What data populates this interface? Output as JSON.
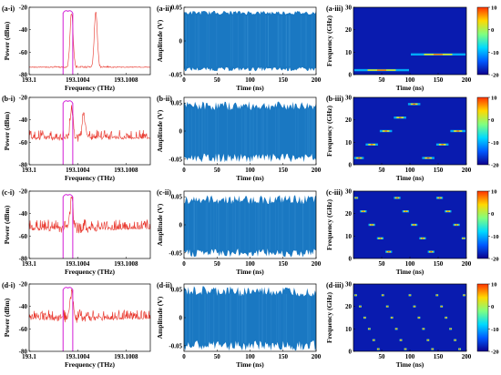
{
  "chart_data": [
    {
      "type": "line",
      "panel_label": "(a-i)",
      "xlabel": "Frequency (THz)",
      "ylabel": "Power (dBm)",
      "xlim": [
        193.1,
        193.101
      ],
      "ylim": [
        -80,
        -20
      ],
      "xticks": [
        "193.1",
        "193.1004",
        "193.1008"
      ],
      "yticks": [
        "-80",
        "-60",
        "-40",
        "-20"
      ],
      "series": [
        {
          "color": "#e8342a",
          "peaks": [
            193.10035,
            193.10055
          ],
          "peak_levels": [
            -25,
            -25
          ],
          "base": -76,
          "noise": 3
        }
      ],
      "overlay": {
        "color": "#d21fd6",
        "x_start": 193.10028,
        "x_end": 193.10036,
        "level": -22
      }
    },
    {
      "type": "area",
      "panel_label": "(a-ii)",
      "xlabel": "Time (ns)",
      "ylabel": "Amplitude (V)",
      "xlim": [
        0,
        200
      ],
      "ylim": [
        -0.05,
        0.05
      ],
      "xticks": [
        "0",
        "50",
        "100",
        "150",
        "200"
      ],
      "yticks": [
        "-0.05",
        "0",
        "0.05"
      ],
      "envelope_upper": 0.042,
      "envelope_lower": -0.042,
      "ripple": 0.003,
      "color": "#1a78c2"
    },
    {
      "type": "heatmap",
      "panel_label": "(a-iii)",
      "xlabel": "Time (ns)",
      "ylabel": "Frequency (GHz)",
      "xlim": [
        0,
        200
      ],
      "ylim": [
        0,
        30
      ],
      "xticks": [
        "50",
        "100",
        "150",
        "200"
      ],
      "yticks": [
        "0",
        "10",
        "20",
        "30"
      ],
      "colorbar": {
        "ticks": [
          "10",
          "0",
          "-10",
          "-20"
        ],
        "range": [
          -20,
          10
        ]
      },
      "segments": [
        {
          "t0": 0,
          "t1": 100,
          "f": 2
        },
        {
          "t0": 100,
          "t1": 200,
          "f": 9
        }
      ]
    },
    {
      "type": "line",
      "panel_label": "(b-i)",
      "xlabel": "Frequency (THz)",
      "ylabel": "Power (dBm)",
      "xlim": [
        193.1,
        193.101
      ],
      "ylim": [
        -80,
        -20
      ],
      "xticks": [
        "193.1",
        "193.1004",
        "193.1008"
      ],
      "yticks": [
        "-80",
        "-60",
        "-40",
        "-20"
      ],
      "series": [
        {
          "color": "#e8342a",
          "peaks": [
            193.10035,
            193.10045
          ],
          "peak_levels": [
            -28,
            -35
          ],
          "base": -58,
          "noise": 9
        }
      ],
      "overlay": {
        "color": "#d21fd6",
        "x_start": 193.10028,
        "x_end": 193.10036,
        "level": -22
      }
    },
    {
      "type": "area",
      "panel_label": "(b-ii)",
      "xlabel": "Time (ns)",
      "ylabel": "Amplitude (V)",
      "xlim": [
        0,
        200
      ],
      "ylim": [
        -0.06,
        0.06
      ],
      "xticks": [
        "0",
        "50",
        "100",
        "150",
        "200"
      ],
      "yticks": [
        "-0.05",
        "0",
        "0.05"
      ],
      "envelope_upper": 0.045,
      "envelope_lower": -0.048,
      "ripple": 0.008,
      "color": "#1a78c2"
    },
    {
      "type": "heatmap",
      "panel_label": "(b-iii)",
      "xlabel": "Time (ns)",
      "ylabel": "Frequency (GHz)",
      "xlim": [
        0,
        200
      ],
      "ylim": [
        0,
        30
      ],
      "xticks": [
        "50",
        "100",
        "150",
        "200"
      ],
      "yticks": [
        "0",
        "10",
        "20",
        "30"
      ],
      "colorbar": {
        "ticks": [
          "10",
          "0",
          "-10",
          "-20"
        ],
        "range": [
          -20,
          10
        ]
      },
      "segments": [
        {
          "t0": 0,
          "t1": 20,
          "f": 3
        },
        {
          "t0": 20,
          "t1": 45,
          "f": 9
        },
        {
          "t0": 45,
          "t1": 70,
          "f": 15
        },
        {
          "t0": 70,
          "t1": 95,
          "f": 21
        },
        {
          "t0": 95,
          "t1": 120,
          "f": 27
        },
        {
          "t0": 120,
          "t1": 145,
          "f": 3
        },
        {
          "t0": 145,
          "t1": 170,
          "f": 9
        },
        {
          "t0": 170,
          "t1": 200,
          "f": 15
        }
      ]
    },
    {
      "type": "line",
      "panel_label": "(c-i)",
      "xlabel": "Frequency (THz)",
      "ylabel": "Power (dBm)",
      "xlim": [
        193.1,
        193.101
      ],
      "ylim": [
        -80,
        -20
      ],
      "xticks": [
        "193.1",
        "193.1004",
        "193.1008"
      ],
      "yticks": [
        "-80",
        "-60",
        "-40",
        "-20"
      ],
      "series": [
        {
          "color": "#e8342a",
          "peaks": [
            193.10035
          ],
          "peak_levels": [
            -28
          ],
          "base": -55,
          "noise": 10
        }
      ],
      "overlay": {
        "color": "#d21fd6",
        "x_start": 193.10028,
        "x_end": 193.10036,
        "level": -22
      }
    },
    {
      "type": "area",
      "panel_label": "(c-ii)",
      "xlabel": "Time (ns)",
      "ylabel": "Amplitude (V)",
      "xlim": [
        0,
        200
      ],
      "ylim": [
        -0.06,
        0.06
      ],
      "xticks": [
        "0",
        "50",
        "100",
        "150",
        "200"
      ],
      "yticks": [
        "-0.05",
        "0",
        "0.05"
      ],
      "envelope_upper": 0.045,
      "envelope_lower": -0.05,
      "ripple": 0.008,
      "color": "#1a78c2"
    },
    {
      "type": "heatmap",
      "panel_label": "(c-iii)",
      "xlabel": "Time (ns)",
      "ylabel": "Frequency (GHz)",
      "xlim": [
        0,
        200
      ],
      "ylim": [
        0,
        30
      ],
      "xticks": [
        "50",
        "100",
        "150",
        "200"
      ],
      "yticks": [
        "0",
        "10",
        "20",
        "30"
      ],
      "colorbar": {
        "ticks": [
          "10",
          "0",
          "-10",
          "-20"
        ],
        "range": [
          -20,
          10
        ]
      },
      "segments": [
        {
          "t0": 0,
          "t1": 10,
          "f": 27
        },
        {
          "t0": 10,
          "t1": 25,
          "f": 21
        },
        {
          "t0": 25,
          "t1": 40,
          "f": 15
        },
        {
          "t0": 40,
          "t1": 55,
          "f": 9
        },
        {
          "t0": 55,
          "t1": 70,
          "f": 3
        },
        {
          "t0": 70,
          "t1": 85,
          "f": 27
        },
        {
          "t0": 85,
          "t1": 100,
          "f": 21
        },
        {
          "t0": 100,
          "t1": 115,
          "f": 15
        },
        {
          "t0": 115,
          "t1": 130,
          "f": 9
        },
        {
          "t0": 130,
          "t1": 145,
          "f": 3
        },
        {
          "t0": 145,
          "t1": 160,
          "f": 27
        },
        {
          "t0": 160,
          "t1": 175,
          "f": 21
        },
        {
          "t0": 175,
          "t1": 190,
          "f": 15
        },
        {
          "t0": 190,
          "t1": 200,
          "f": 9
        }
      ]
    },
    {
      "type": "line",
      "panel_label": "(d-i)",
      "xlabel": "Frequency (THz)",
      "ylabel": "Power (dBm)",
      "xlim": [
        193.1,
        193.101
      ],
      "ylim": [
        -80,
        -20
      ],
      "xticks": [
        "193.1",
        "193.1004",
        "193.1008"
      ],
      "yticks": [
        "-80",
        "-60",
        "-40",
        "-20"
      ],
      "series": [
        {
          "color": "#e8342a",
          "peaks": [
            193.10035
          ],
          "peak_levels": [
            -28
          ],
          "base": -52,
          "noise": 9
        }
      ],
      "overlay": {
        "color": "#d21fd6",
        "x_start": 193.10028,
        "x_end": 193.10036,
        "level": -22
      }
    },
    {
      "type": "area",
      "panel_label": "(d-ii)",
      "xlabel": "Time (ns)",
      "ylabel": "Amplitude (V)",
      "xlim": [
        0,
        200
      ],
      "ylim": [
        -0.06,
        0.06
      ],
      "xticks": [
        "0",
        "50",
        "100",
        "150",
        "200"
      ],
      "yticks": [
        "-0.05",
        "0",
        "0.05"
      ],
      "envelope_upper": 0.047,
      "envelope_lower": -0.05,
      "ripple": 0.009,
      "color": "#1a78c2"
    },
    {
      "type": "heatmap",
      "panel_label": "(d-iii)",
      "xlabel": "Time (ns)",
      "ylabel": "Frequency (GHz)",
      "xlim": [
        0,
        200
      ],
      "ylim": [
        0,
        30
      ],
      "xticks": [
        "50",
        "100",
        "150",
        "200"
      ],
      "yticks": [
        "0",
        "10",
        "20",
        "30"
      ],
      "colorbar": {
        "ticks": [
          "10",
          "0",
          "-10",
          "-20"
        ],
        "range": [
          -20,
          10
        ]
      },
      "segments": [
        {
          "t0": 0,
          "t1": 8,
          "f": 25
        },
        {
          "t0": 8,
          "t1": 16,
          "f": 20
        },
        {
          "t0": 16,
          "t1": 24,
          "f": 15
        },
        {
          "t0": 24,
          "t1": 32,
          "f": 10
        },
        {
          "t0": 32,
          "t1": 40,
          "f": 5
        },
        {
          "t0": 40,
          "t1": 48,
          "f": 1
        },
        {
          "t0": 48,
          "t1": 56,
          "f": 25
        },
        {
          "t0": 56,
          "t1": 64,
          "f": 20
        },
        {
          "t0": 64,
          "t1": 72,
          "f": 15
        },
        {
          "t0": 72,
          "t1": 80,
          "f": 10
        },
        {
          "t0": 80,
          "t1": 88,
          "f": 5
        },
        {
          "t0": 88,
          "t1": 96,
          "f": 1
        },
        {
          "t0": 96,
          "t1": 104,
          "f": 25
        },
        {
          "t0": 104,
          "t1": 112,
          "f": 20
        },
        {
          "t0": 112,
          "t1": 120,
          "f": 15
        },
        {
          "t0": 120,
          "t1": 128,
          "f": 10
        },
        {
          "t0": 128,
          "t1": 136,
          "f": 5
        },
        {
          "t0": 136,
          "t1": 144,
          "f": 1
        },
        {
          "t0": 144,
          "t1": 152,
          "f": 25
        },
        {
          "t0": 152,
          "t1": 160,
          "f": 20
        },
        {
          "t0": 160,
          "t1": 168,
          "f": 15
        },
        {
          "t0": 168,
          "t1": 176,
          "f": 10
        },
        {
          "t0": 176,
          "t1": 184,
          "f": 5
        },
        {
          "t0": 184,
          "t1": 192,
          "f": 1
        },
        {
          "t0": 192,
          "t1": 200,
          "f": 25
        }
      ]
    }
  ]
}
